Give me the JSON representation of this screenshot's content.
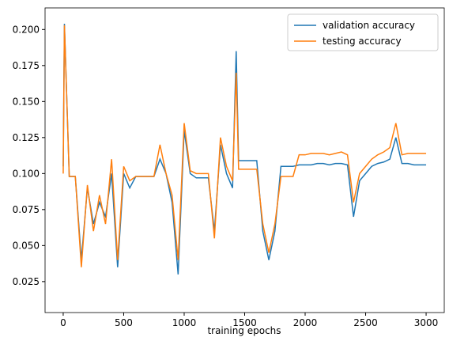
{
  "chart_data": {
    "type": "line",
    "xlabel": "training epochs",
    "x": [
      0,
      10,
      50,
      100,
      150,
      200,
      250,
      300,
      350,
      400,
      450,
      500,
      550,
      600,
      650,
      700,
      750,
      800,
      850,
      900,
      950,
      1000,
      1050,
      1100,
      1150,
      1200,
      1250,
      1300,
      1350,
      1400,
      1430,
      1450,
      1500,
      1550,
      1600,
      1650,
      1700,
      1750,
      1800,
      1850,
      1900,
      1950,
      2000,
      2050,
      2100,
      2150,
      2200,
      2250,
      2300,
      2350,
      2400,
      2450,
      2500,
      2550,
      2600,
      2650,
      2700,
      2750,
      2800,
      2850,
      2900,
      2950,
      3000
    ],
    "series": [
      {
        "name": "validation accuracy",
        "color": "#1f77b4",
        "values": [
          0.105,
          0.204,
          0.098,
          0.098,
          0.04,
          0.09,
          0.065,
          0.08,
          0.07,
          0.1,
          0.035,
          0.1,
          0.09,
          0.098,
          0.098,
          0.098,
          0.098,
          0.11,
          0.1,
          0.08,
          0.03,
          0.13,
          0.1,
          0.097,
          0.097,
          0.097,
          0.06,
          0.12,
          0.1,
          0.09,
          0.185,
          0.109,
          0.109,
          0.109,
          0.109,
          0.06,
          0.04,
          0.06,
          0.105,
          0.105,
          0.105,
          0.106,
          0.106,
          0.106,
          0.107,
          0.107,
          0.106,
          0.107,
          0.107,
          0.106,
          0.07,
          0.095,
          0.1,
          0.105,
          0.107,
          0.108,
          0.11,
          0.125,
          0.107,
          0.107,
          0.106,
          0.106,
          0.106
        ]
      },
      {
        "name": "testing accuracy",
        "color": "#ff7f0e",
        "values": [
          0.1,
          0.203,
          0.098,
          0.098,
          0.035,
          0.092,
          0.06,
          0.085,
          0.065,
          0.11,
          0.04,
          0.105,
          0.095,
          0.098,
          0.098,
          0.098,
          0.098,
          0.12,
          0.1,
          0.085,
          0.04,
          0.135,
          0.102,
          0.1,
          0.1,
          0.1,
          0.055,
          0.125,
          0.105,
          0.095,
          0.17,
          0.103,
          0.103,
          0.103,
          0.103,
          0.065,
          0.045,
          0.065,
          0.098,
          0.098,
          0.098,
          0.113,
          0.113,
          0.114,
          0.114,
          0.114,
          0.113,
          0.114,
          0.115,
          0.113,
          0.08,
          0.1,
          0.105,
          0.11,
          0.113,
          0.115,
          0.118,
          0.135,
          0.113,
          0.114,
          0.114,
          0.114,
          0.114
        ]
      }
    ],
    "xlim": [
      -150,
      3150
    ],
    "ylim": [
      0.0035,
      0.215
    ],
    "xticks": [
      0,
      500,
      1000,
      1500,
      2000,
      2500,
      3000
    ],
    "yticks": [
      {
        "value": 0.025,
        "label": "0.025"
      },
      {
        "value": 0.05,
        "label": "0.050"
      },
      {
        "value": 0.075,
        "label": "0.075"
      },
      {
        "value": 0.1,
        "label": "0.100"
      },
      {
        "value": 0.125,
        "label": "0.125"
      },
      {
        "value": 0.15,
        "label": "0.150"
      },
      {
        "value": 0.175,
        "label": "0.175"
      },
      {
        "value": 0.2,
        "label": "0.200"
      }
    ],
    "legend": "upper right"
  }
}
